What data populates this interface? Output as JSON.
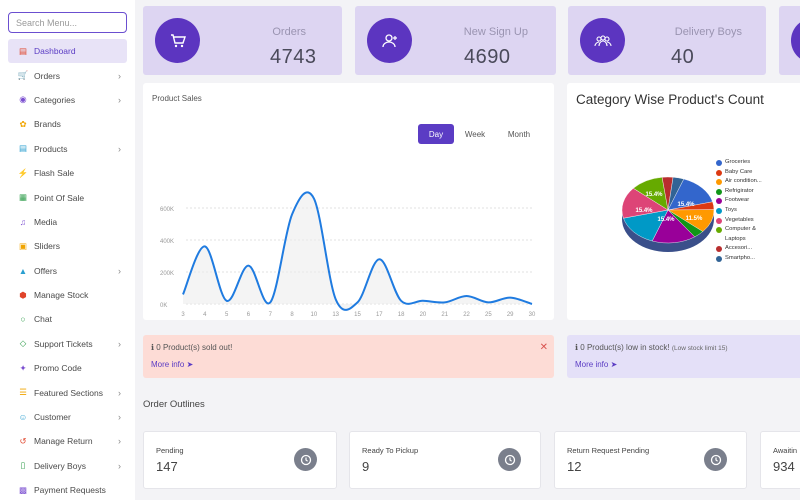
{
  "sidebar": {
    "search_placeholder": "Search Menu...",
    "items": [
      {
        "label": "Dashboard",
        "icon": "monitor-icon",
        "active": true,
        "chevron": false
      },
      {
        "label": "Orders",
        "icon": "cart-icon",
        "active": false,
        "chevron": true
      },
      {
        "label": "Categories",
        "icon": "target-icon",
        "active": false,
        "chevron": true
      },
      {
        "label": "Brands",
        "icon": "brands-icon",
        "active": false,
        "chevron": false
      },
      {
        "label": "Products",
        "icon": "box-icon",
        "active": false,
        "chevron": true
      },
      {
        "label": "Flash Sale",
        "icon": "flash-icon",
        "active": false,
        "chevron": false
      },
      {
        "label": "Point Of Sale",
        "icon": "pos-icon",
        "active": false,
        "chevron": false
      },
      {
        "label": "Media",
        "icon": "music-icon",
        "active": false,
        "chevron": false
      },
      {
        "label": "Sliders",
        "icon": "image-icon",
        "active": false,
        "chevron": false
      },
      {
        "label": "Offers",
        "icon": "gift-icon",
        "active": false,
        "chevron": true
      },
      {
        "label": "Manage Stock",
        "icon": "cube-icon",
        "active": false,
        "chevron": false
      },
      {
        "label": "Chat",
        "icon": "chat-icon",
        "active": false,
        "chevron": false
      },
      {
        "label": "Support Tickets",
        "icon": "ticket-icon",
        "active": false,
        "chevron": true
      },
      {
        "label": "Promo Code",
        "icon": "puzzle-icon",
        "active": false,
        "chevron": false
      },
      {
        "label": "Featured Sections",
        "icon": "layers-icon",
        "active": false,
        "chevron": true
      },
      {
        "label": "Customer",
        "icon": "user-icon",
        "active": false,
        "chevron": true
      },
      {
        "label": "Manage Return",
        "icon": "return-icon",
        "active": false,
        "chevron": true
      },
      {
        "label": "Delivery Boys",
        "icon": "phone-icon",
        "active": false,
        "chevron": true
      },
      {
        "label": "Payment Requests",
        "icon": "wallet-icon",
        "active": false,
        "chevron": false
      }
    ]
  },
  "stats": [
    {
      "label": "Orders",
      "value": "4743",
      "icon": "cart-icon"
    },
    {
      "label": "New Sign Up",
      "value": "4690",
      "icon": "user-add-icon"
    },
    {
      "label": "Delivery Boys",
      "value": "40",
      "icon": "group-icon"
    }
  ],
  "sales_chart": {
    "title": "Product Sales",
    "toggles": [
      "Day",
      "Week",
      "Month"
    ],
    "active_toggle": "Day"
  },
  "chart_data": [
    {
      "type": "line",
      "title": "Product Sales",
      "x": [
        3,
        4,
        5,
        6,
        7,
        8,
        10,
        13,
        15,
        17,
        18,
        20,
        21,
        22,
        25,
        29,
        30
      ],
      "y_ticks": [
        "0K",
        "200K",
        "400K",
        "600K"
      ],
      "series": [
        {
          "values": [
            60000,
            360000,
            20000,
            240000,
            10000,
            560000,
            660000,
            30000,
            10000,
            280000,
            20000,
            20000,
            10000,
            50000,
            10000,
            40000,
            0
          ]
        }
      ],
      "ylim": [
        0,
        700000
      ],
      "grid": true
    },
    {
      "type": "pie",
      "title": "Category Wise Product's Count",
      "slices": [
        {
          "label": "Groceries",
          "value": 15.4,
          "color": "#3366cc"
        },
        {
          "label": "Baby Care",
          "value": 3.8,
          "color": "#dc3912"
        },
        {
          "label": "Air condition...",
          "value": 11.5,
          "color": "#ff9900"
        },
        {
          "label": "Refrigirator",
          "value": 3.8,
          "color": "#109618"
        },
        {
          "label": "Footwear",
          "value": 15.4,
          "color": "#990099"
        },
        {
          "label": "Toys",
          "value": 15.4,
          "color": "#0099c6"
        },
        {
          "label": "Vegetables",
          "value": 15.4,
          "color": "#dd4477"
        },
        {
          "label": "Computer & Laptops",
          "value": 11.5,
          "color": "#66aa00"
        },
        {
          "label": "Accesori...",
          "value": 3.8,
          "color": "#b82e2e"
        },
        {
          "label": "Smartpho...",
          "value": 3.8,
          "color": "#316395"
        }
      ],
      "pct_labels": [
        "15.4%",
        "15.4%",
        "15.4%",
        "15.4%",
        "11.5%"
      ],
      "legend": "right"
    }
  ],
  "alerts": {
    "sold_out": {
      "text": "0 Product(s) sold out!",
      "more": "More info"
    },
    "low_stock": {
      "text": "0 Product(s) low in stock!",
      "limit": "(Low stock limit 15)",
      "more": "More info"
    }
  },
  "order_outlines": {
    "title": "Order Outlines",
    "items": [
      {
        "label": "Pending",
        "value": "147"
      },
      {
        "label": "Ready To Pickup",
        "value": "9"
      },
      {
        "label": "Return Request Pending",
        "value": "12"
      },
      {
        "label": "Awaitin",
        "value": "934"
      }
    ]
  },
  "colors": {
    "accent": "#5b3cc4",
    "stat_bg": "#ddd5f2",
    "sold_out_bg": "#fddcd6",
    "low_stock_bg": "#e4e0f8"
  }
}
